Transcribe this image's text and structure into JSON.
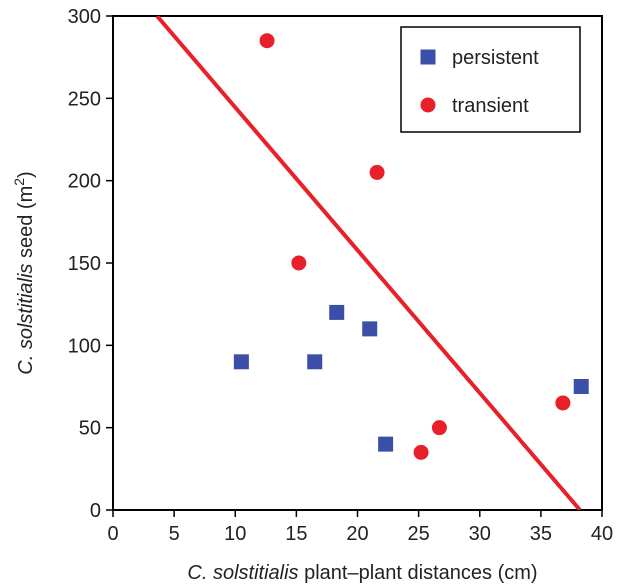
{
  "chart_data": {
    "type": "scatter",
    "title": "",
    "xlabel": {
      "italic": "C. solstitialis",
      "rest": " plant–plant distances (cm)"
    },
    "ylabel": {
      "italic": "C. solstitialis",
      "rest": " seed (m",
      "sup": "2",
      "close": ")"
    },
    "xlim": [
      0,
      40
    ],
    "ylim": [
      0,
      300
    ],
    "xticks": [
      0,
      5,
      10,
      15,
      20,
      25,
      30,
      35,
      40
    ],
    "yticks": [
      0,
      50,
      100,
      150,
      200,
      250,
      300
    ],
    "grid": false,
    "legend_position": "top-right",
    "series": [
      {
        "name": "persistent",
        "marker": "square",
        "color": "#3b4fa8",
        "points": [
          {
            "x": 10.5,
            "y": 90
          },
          {
            "x": 16.5,
            "y": 90
          },
          {
            "x": 18.3,
            "y": 120
          },
          {
            "x": 21.0,
            "y": 110
          },
          {
            "x": 22.3,
            "y": 40
          },
          {
            "x": 38.3,
            "y": 75
          }
        ]
      },
      {
        "name": "transient",
        "marker": "circle",
        "color": "#e8202a",
        "points": [
          {
            "x": 12.6,
            "y": 285
          },
          {
            "x": 15.2,
            "y": 150
          },
          {
            "x": 21.6,
            "y": 205
          },
          {
            "x": 25.2,
            "y": 35
          },
          {
            "x": 26.7,
            "y": 50
          },
          {
            "x": 36.8,
            "y": 65
          }
        ]
      }
    ],
    "trend_line": {
      "color": "#e8202a",
      "from": {
        "x": 3.6,
        "y": 300
      },
      "to": {
        "x": 38.2,
        "y": 0
      }
    }
  }
}
